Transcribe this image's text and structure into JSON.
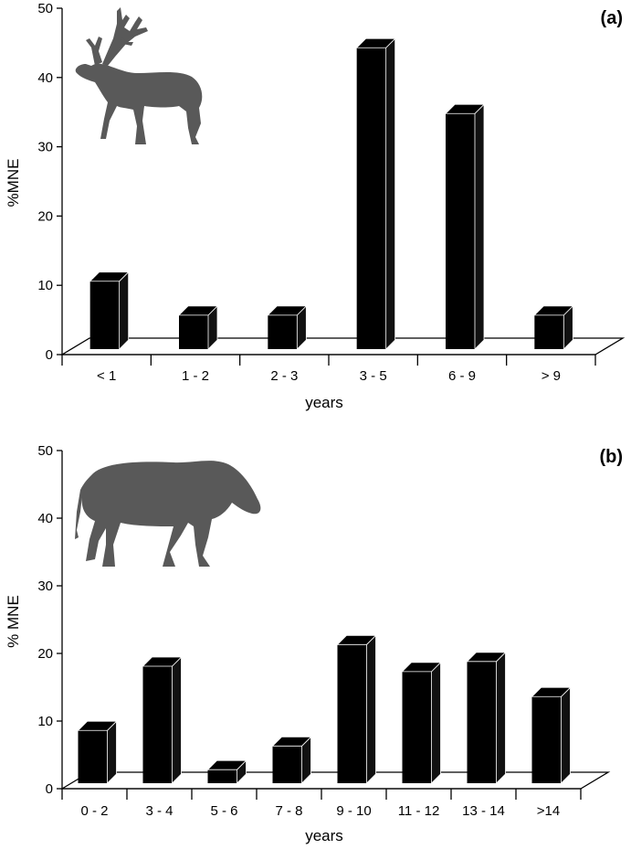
{
  "chart_data": [
    {
      "type": "bar",
      "panel_label": "(a)",
      "categories": [
        "< 1",
        "1 - 2",
        "2 - 3",
        "3 - 5",
        "6 - 9",
        "> 9"
      ],
      "values": [
        9.8,
        4.9,
        4.9,
        43.5,
        34.0,
        4.9
      ],
      "xlabel": "years",
      "ylabel": "%MNE",
      "ylim": [
        0,
        50
      ],
      "yticks": [
        "0",
        "10",
        "20",
        "30",
        "40",
        "50"
      ],
      "icon": "reindeer-silhouette-icon"
    },
    {
      "type": "bar",
      "panel_label": "(b)",
      "categories": [
        "0 - 2",
        "3 - 4",
        "5 - 6",
        "7 - 8",
        "9 - 10",
        "11 - 12",
        "13 - 14",
        ">14"
      ],
      "values": [
        7.8,
        17.3,
        2.0,
        5.5,
        20.5,
        16.5,
        18.0,
        12.8
      ],
      "xlabel": "years",
      "ylabel": "% MNE",
      "ylim": [
        0,
        50
      ],
      "yticks": [
        "0",
        "10",
        "20",
        "30",
        "40",
        "50"
      ],
      "icon": "horse-silhouette-icon"
    }
  ]
}
